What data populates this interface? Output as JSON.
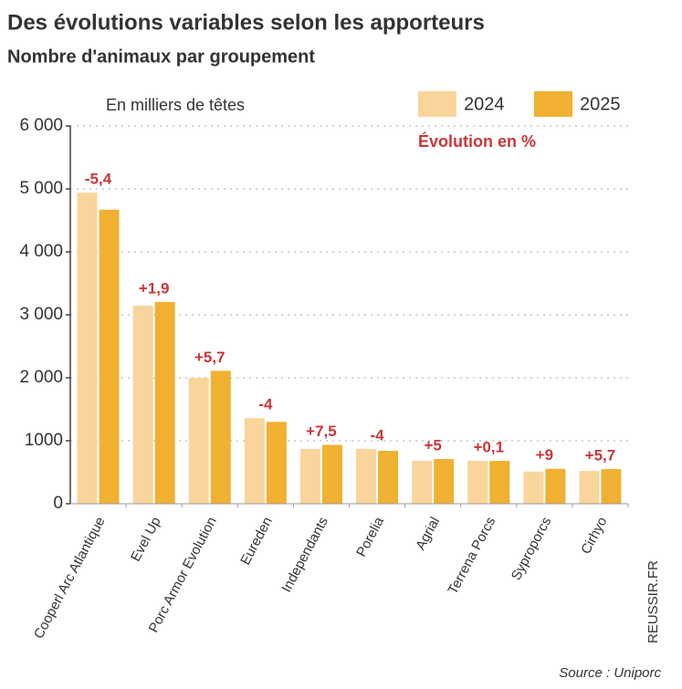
{
  "chart_data": {
    "type": "bar",
    "title": "Des évolutions variables selon les apporteurs",
    "subtitle": "Nombre d'animaux par groupement",
    "y_label": "En milliers de têtes",
    "change_title": "Évolution en %",
    "source": "Source : Uniporc",
    "credit": "REUSSIR.FR",
    "categories": [
      "Cooperl Arc Atlantique",
      "Evel Up",
      "Porc Armor Evolution",
      "Eureden",
      "Independants",
      "Porelia",
      "Agrial",
      "Terrena Porcs",
      "Syproporcs",
      "Cirhyo"
    ],
    "series": [
      {
        "name": "2024",
        "color": "#f9d59c",
        "values": [
          4940,
          3145,
          2000,
          1360,
          870,
          870,
          680,
          680,
          510,
          520
        ]
      },
      {
        "name": "2025",
        "color": "#f0b032",
        "values": [
          4670,
          3205,
          2110,
          1300,
          935,
          840,
          710,
          680,
          555,
          550
        ]
      }
    ],
    "change_labels": [
      "-5,4",
      "+1,9",
      "+5,7",
      "-4",
      "+7,5",
      "-4",
      "+5",
      "+0,1",
      "+9",
      "+5,7"
    ],
    "ylim": [
      0,
      6000
    ],
    "yticks": [
      0,
      {
        "value": 1000,
        "label": "1000"
      },
      {
        "value": 2000,
        "label": "2 000"
      },
      {
        "value": 3000,
        "label": "3 000"
      },
      {
        "value": 4000,
        "label": "4 000"
      },
      {
        "value": 5000,
        "label": "5 000"
      },
      {
        "value": 6000,
        "label": "6 000"
      }
    ],
    "grid": true
  }
}
